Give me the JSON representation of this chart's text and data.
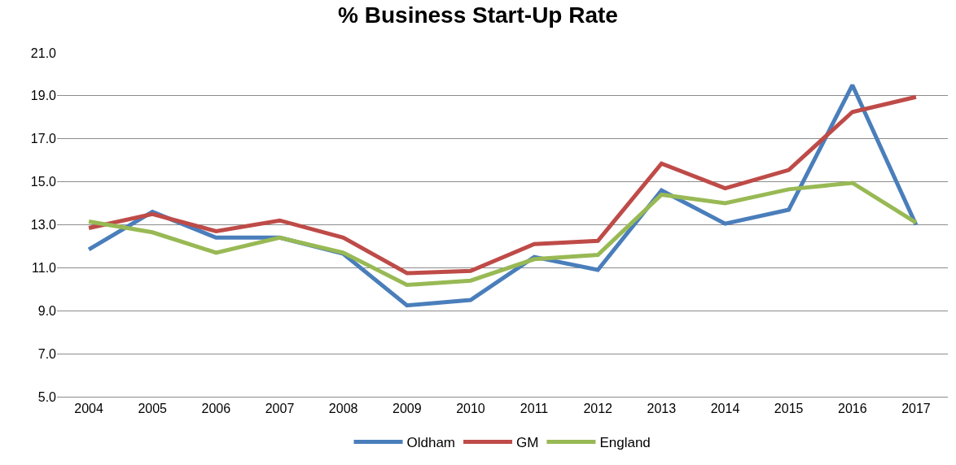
{
  "chart_data": {
    "type": "line",
    "title": "% Business Start-Up Rate",
    "categories": [
      "2004",
      "2005",
      "2006",
      "2007",
      "2008",
      "2009",
      "2010",
      "2011",
      "2012",
      "2013",
      "2014",
      "2015",
      "2016",
      "2017"
    ],
    "series": [
      {
        "name": "Oldham",
        "color": "#4a7ebb",
        "values": [
          11.85,
          13.6,
          12.4,
          12.4,
          11.65,
          9.25,
          9.5,
          11.5,
          10.9,
          14.6,
          13.05,
          13.7,
          19.5,
          13.0
        ]
      },
      {
        "name": "GM",
        "color": "#be4b48",
        "values": [
          12.85,
          13.5,
          12.7,
          13.2,
          12.4,
          10.75,
          10.85,
          12.1,
          12.25,
          15.85,
          14.7,
          15.55,
          18.25,
          18.95
        ]
      },
      {
        "name": "England",
        "color": "#98b954",
        "values": [
          13.15,
          12.65,
          11.7,
          12.4,
          11.7,
          10.2,
          10.4,
          11.4,
          11.6,
          14.4,
          14.0,
          14.65,
          14.95,
          13.1
        ]
      }
    ],
    "ylim": [
      5,
      21
    ],
    "yticks": [
      {
        "value": 5,
        "label": "5.0"
      },
      {
        "value": 7,
        "label": "7.0"
      },
      {
        "value": 9,
        "label": "9.0"
      },
      {
        "value": 11,
        "label": "11.0"
      },
      {
        "value": 13,
        "label": "13.0"
      },
      {
        "value": 15,
        "label": "15.0"
      },
      {
        "value": 17,
        "label": "17.0"
      },
      {
        "value": 19,
        "label": "19.0"
      },
      {
        "value": 21,
        "label": "21.0"
      }
    ],
    "grid": "y",
    "legend": "bottom",
    "marker": "none",
    "line_style": "solid"
  }
}
